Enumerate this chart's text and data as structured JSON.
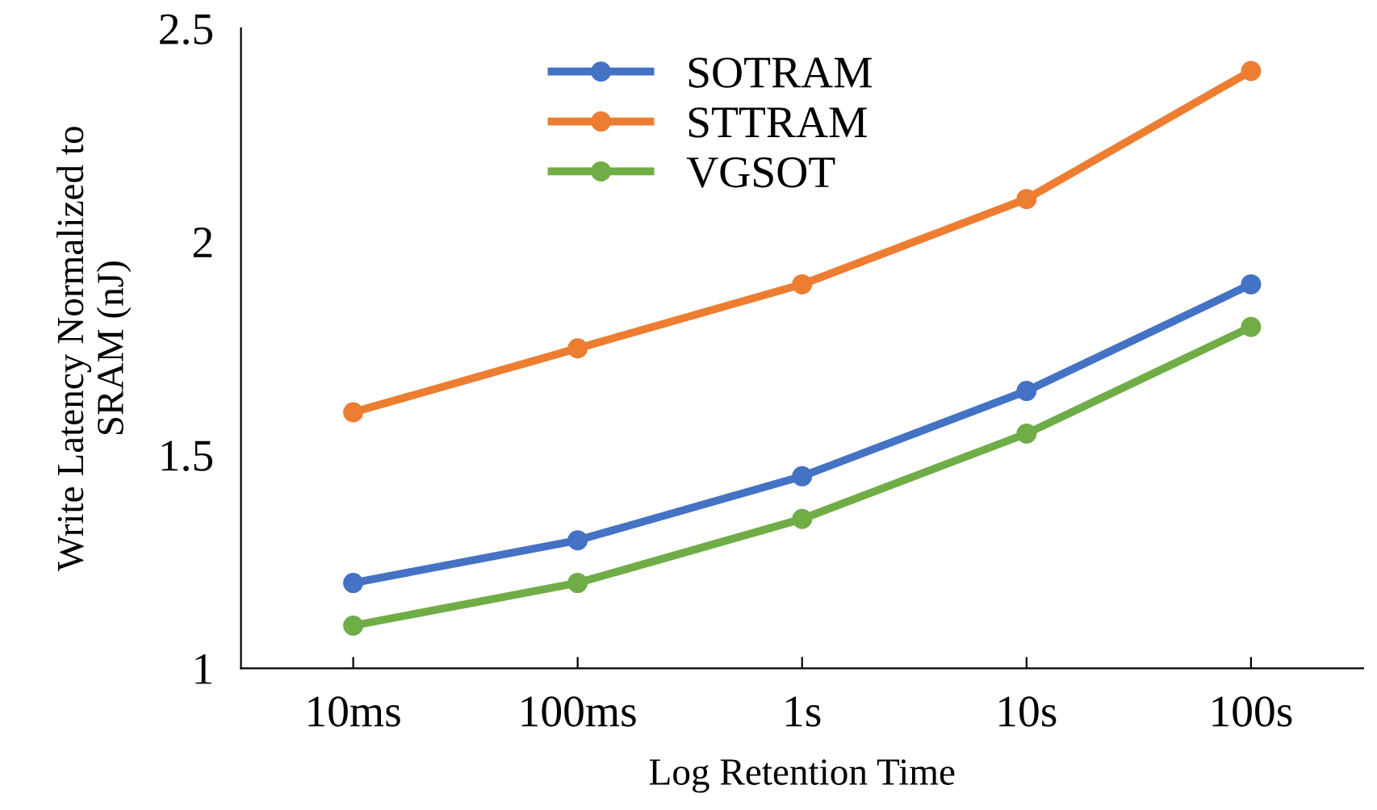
{
  "chart_data": {
    "type": "line",
    "xlabel": "Log Retention Time",
    "ylabel": "Write Latency Normalized to\nSRAM (nJ)",
    "categories": [
      "10ms",
      "100ms",
      "1s",
      "10s",
      "100s"
    ],
    "series": [
      {
        "name": "SOTRAM",
        "color": "#4472c4",
        "values": [
          1.2,
          1.3,
          1.45,
          1.65,
          1.9
        ]
      },
      {
        "name": "STTRAM",
        "color": "#ed7d31",
        "values": [
          1.6,
          1.75,
          1.9,
          2.1,
          2.4
        ]
      },
      {
        "name": "VGSOT",
        "color": "#70ad47",
        "values": [
          1.1,
          1.2,
          1.35,
          1.55,
          1.8
        ]
      }
    ],
    "ylim": [
      1,
      2.5
    ],
    "yticks": [
      1,
      1.5,
      2,
      2.5
    ],
    "grid": false,
    "legend": "top",
    "marker": "circle",
    "line_style": "solid"
  }
}
